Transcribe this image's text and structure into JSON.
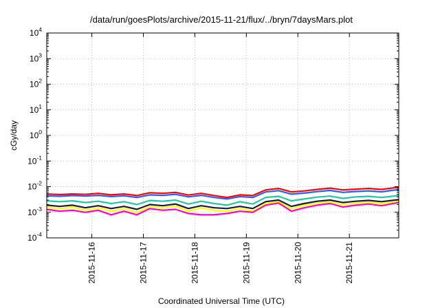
{
  "chart_data": {
    "type": "line",
    "title": "/data/run/goesPlots/archive/2015-11-21/flux/../bryn/7daysMars.plot",
    "xlabel": "Coordinated Universal Time (UTC)",
    "ylabel": "cGy/day",
    "yscale": "log",
    "ylim": [
      0.0001,
      10000
    ],
    "y_ticks": [
      {
        "base": "10",
        "exp": "-4",
        "value": 0.0001
      },
      {
        "base": "10",
        "exp": "-3",
        "value": 0.001
      },
      {
        "base": "10",
        "exp": "-2",
        "value": 0.01
      },
      {
        "base": "10",
        "exp": "-1",
        "value": 0.1
      },
      {
        "base": "10",
        "exp": "0",
        "value": 1
      },
      {
        "base": "10",
        "exp": "1",
        "value": 10
      },
      {
        "base": "10",
        "exp": "2",
        "value": 100
      },
      {
        "base": "10",
        "exp": "3",
        "value": 1000
      },
      {
        "base": "10",
        "exp": "4",
        "value": 10000
      }
    ],
    "xlim": [
      "2015-11-15T03:00",
      "2015-11-21T23:00"
    ],
    "x_ticks": [
      "2015-11-16",
      "2015-11-17",
      "2015-11-18",
      "2015-11-19",
      "2015-11-20",
      "2015-11-21"
    ],
    "grid": true,
    "series": [
      {
        "color": "#ff0000",
        "points": [
          [
            "2015-11-15T03:00",
            0.0052
          ],
          [
            "2015-11-15T09:00",
            0.0049
          ],
          [
            "2015-11-15T15:00",
            0.0052
          ],
          [
            "2015-11-15T21:00",
            0.005
          ],
          [
            "2015-11-16T03:00",
            0.0055
          ],
          [
            "2015-11-16T09:00",
            0.0048
          ],
          [
            "2015-11-16T15:00",
            0.0052
          ],
          [
            "2015-11-16T21:00",
            0.0045
          ],
          [
            "2015-11-17T03:00",
            0.0058
          ],
          [
            "2015-11-17T09:00",
            0.0055
          ],
          [
            "2015-11-17T15:00",
            0.006
          ],
          [
            "2015-11-17T21:00",
            0.0047
          ],
          [
            "2015-11-18T03:00",
            0.0055
          ],
          [
            "2015-11-18T09:00",
            0.0045
          ],
          [
            "2015-11-18T15:00",
            0.0038
          ],
          [
            "2015-11-18T21:00",
            0.0048
          ],
          [
            "2015-11-19T03:00",
            0.0045
          ],
          [
            "2015-11-19T09:00",
            0.0075
          ],
          [
            "2015-11-19T15:00",
            0.0085
          ],
          [
            "2015-11-19T21:00",
            0.0062
          ],
          [
            "2015-11-20T03:00",
            0.0068
          ],
          [
            "2015-11-20T09:00",
            0.0078
          ],
          [
            "2015-11-20T15:00",
            0.0088
          ],
          [
            "2015-11-20T21:00",
            0.0075
          ],
          [
            "2015-11-21T03:00",
            0.008
          ],
          [
            "2015-11-21T09:00",
            0.0085
          ],
          [
            "2015-11-21T15:00",
            0.0078
          ],
          [
            "2015-11-21T23:00",
            0.0095
          ]
        ]
      },
      {
        "color": "#1f5fff",
        "points": [
          [
            "2015-11-15T03:00",
            0.0044
          ],
          [
            "2015-11-15T09:00",
            0.0042
          ],
          [
            "2015-11-15T15:00",
            0.0045
          ],
          [
            "2015-11-15T21:00",
            0.0043
          ],
          [
            "2015-11-16T03:00",
            0.0046
          ],
          [
            "2015-11-16T09:00",
            0.0041
          ],
          [
            "2015-11-16T15:00",
            0.0044
          ],
          [
            "2015-11-16T21:00",
            0.0038
          ],
          [
            "2015-11-17T03:00",
            0.0048
          ],
          [
            "2015-11-17T09:00",
            0.0046
          ],
          [
            "2015-11-17T15:00",
            0.005
          ],
          [
            "2015-11-17T21:00",
            0.004
          ],
          [
            "2015-11-18T03:00",
            0.0046
          ],
          [
            "2015-11-18T09:00",
            0.0038
          ],
          [
            "2015-11-18T15:00",
            0.0033
          ],
          [
            "2015-11-18T21:00",
            0.0041
          ],
          [
            "2015-11-19T03:00",
            0.0038
          ],
          [
            "2015-11-19T09:00",
            0.0062
          ],
          [
            "2015-11-19T15:00",
            0.007
          ],
          [
            "2015-11-19T21:00",
            0.0051
          ],
          [
            "2015-11-20T03:00",
            0.0056
          ],
          [
            "2015-11-20T09:00",
            0.0064
          ],
          [
            "2015-11-20T15:00",
            0.0071
          ],
          [
            "2015-11-20T21:00",
            0.006
          ],
          [
            "2015-11-21T03:00",
            0.0065
          ],
          [
            "2015-11-21T09:00",
            0.0068
          ],
          [
            "2015-11-21T15:00",
            0.0063
          ],
          [
            "2015-11-21T23:00",
            0.0077
          ]
        ]
      },
      {
        "color": "#20c8a0",
        "points": [
          [
            "2015-11-15T03:00",
            0.0028
          ],
          [
            "2015-11-15T09:00",
            0.0026
          ],
          [
            "2015-11-15T15:00",
            0.0028
          ],
          [
            "2015-11-15T21:00",
            0.0024
          ],
          [
            "2015-11-16T03:00",
            0.0027
          ],
          [
            "2015-11-16T09:00",
            0.0022
          ],
          [
            "2015-11-16T15:00",
            0.0026
          ],
          [
            "2015-11-16T21:00",
            0.002
          ],
          [
            "2015-11-17T03:00",
            0.0029
          ],
          [
            "2015-11-17T09:00",
            0.0027
          ],
          [
            "2015-11-17T15:00",
            0.003
          ],
          [
            "2015-11-17T21:00",
            0.0021
          ],
          [
            "2015-11-18T03:00",
            0.0027
          ],
          [
            "2015-11-18T09:00",
            0.0022
          ],
          [
            "2015-11-18T15:00",
            0.0019
          ],
          [
            "2015-11-18T21:00",
            0.0026
          ],
          [
            "2015-11-19T03:00",
            0.0021
          ],
          [
            "2015-11-19T09:00",
            0.0038
          ],
          [
            "2015-11-19T15:00",
            0.0042
          ],
          [
            "2015-11-19T21:00",
            0.0028
          ],
          [
            "2015-11-20T03:00",
            0.0033
          ],
          [
            "2015-11-20T09:00",
            0.0039
          ],
          [
            "2015-11-20T15:00",
            0.0043
          ],
          [
            "2015-11-20T21:00",
            0.0035
          ],
          [
            "2015-11-21T03:00",
            0.004
          ],
          [
            "2015-11-21T09:00",
            0.0042
          ],
          [
            "2015-11-21T15:00",
            0.0038
          ],
          [
            "2015-11-21T23:00",
            0.0045
          ]
        ]
      },
      {
        "color": "#ffff00",
        "points": [
          [
            "2015-11-15T03:00",
            0.0016
          ],
          [
            "2015-11-15T09:00",
            0.0014
          ],
          [
            "2015-11-15T15:00",
            0.0016
          ],
          [
            "2015-11-15T21:00",
            0.0012
          ],
          [
            "2015-11-16T03:00",
            0.0015
          ],
          [
            "2015-11-16T09:00",
            0.0011
          ],
          [
            "2015-11-16T15:00",
            0.0014
          ],
          [
            "2015-11-16T21:00",
            0.001
          ],
          [
            "2015-11-17T03:00",
            0.0017
          ],
          [
            "2015-11-17T09:00",
            0.0015
          ],
          [
            "2015-11-17T15:00",
            0.0018
          ],
          [
            "2015-11-17T21:00",
            0.0011
          ],
          [
            "2015-11-18T03:00",
            0.0015
          ],
          [
            "2015-11-18T09:00",
            0.0012
          ],
          [
            "2015-11-18T15:00",
            0.0011
          ],
          [
            "2015-11-18T21:00",
            0.0014
          ],
          [
            "2015-11-19T03:00",
            0.0011
          ],
          [
            "2015-11-19T09:00",
            0.0022
          ],
          [
            "2015-11-19T15:00",
            0.0026
          ],
          [
            "2015-11-19T21:00",
            0.0014
          ],
          [
            "2015-11-20T03:00",
            0.0019
          ],
          [
            "2015-11-20T09:00",
            0.0023
          ],
          [
            "2015-11-20T15:00",
            0.0026
          ],
          [
            "2015-11-20T21:00",
            0.002
          ],
          [
            "2015-11-21T03:00",
            0.0023
          ],
          [
            "2015-11-21T09:00",
            0.0025
          ],
          [
            "2015-11-21T15:00",
            0.0022
          ],
          [
            "2015-11-21T23:00",
            0.0027
          ]
        ]
      },
      {
        "color": "#1a1a3a",
        "points": [
          [
            "2015-11-15T03:00",
            0.0019
          ],
          [
            "2015-11-15T09:00",
            0.0017
          ],
          [
            "2015-11-15T15:00",
            0.0019
          ],
          [
            "2015-11-15T21:00",
            0.0015
          ],
          [
            "2015-11-16T03:00",
            0.0018
          ],
          [
            "2015-11-16T09:00",
            0.0014
          ],
          [
            "2015-11-16T15:00",
            0.0017
          ],
          [
            "2015-11-16T21:00",
            0.0013
          ],
          [
            "2015-11-17T03:00",
            0.002
          ],
          [
            "2015-11-17T09:00",
            0.0018
          ],
          [
            "2015-11-17T15:00",
            0.0021
          ],
          [
            "2015-11-17T21:00",
            0.0014
          ],
          [
            "2015-11-18T03:00",
            0.0018
          ],
          [
            "2015-11-18T09:00",
            0.0015
          ],
          [
            "2015-11-18T15:00",
            0.0014
          ],
          [
            "2015-11-18T21:00",
            0.0017
          ],
          [
            "2015-11-19T03:00",
            0.0014
          ],
          [
            "2015-11-19T09:00",
            0.0026
          ],
          [
            "2015-11-19T15:00",
            0.003
          ],
          [
            "2015-11-19T21:00",
            0.0017
          ],
          [
            "2015-11-20T03:00",
            0.0022
          ],
          [
            "2015-11-20T09:00",
            0.0027
          ],
          [
            "2015-11-20T15:00",
            0.003
          ],
          [
            "2015-11-20T21:00",
            0.0024
          ],
          [
            "2015-11-21T03:00",
            0.0027
          ],
          [
            "2015-11-21T09:00",
            0.0029
          ],
          [
            "2015-11-21T15:00",
            0.0026
          ],
          [
            "2015-11-21T23:00",
            0.0031
          ]
        ]
      },
      {
        "color": "#ff00cc",
        "points": [
          [
            "2015-11-15T03:00",
            0.0013
          ],
          [
            "2015-11-15T09:00",
            0.0011
          ],
          [
            "2015-11-15T15:00",
            0.0012
          ],
          [
            "2015-11-15T21:00",
            0.001
          ],
          [
            "2015-11-16T03:00",
            0.0012
          ],
          [
            "2015-11-16T09:00",
            0.0008
          ],
          [
            "2015-11-16T15:00",
            0.0011
          ],
          [
            "2015-11-16T21:00",
            0.0008
          ],
          [
            "2015-11-17T03:00",
            0.0014
          ],
          [
            "2015-11-17T09:00",
            0.0012
          ],
          [
            "2015-11-17T15:00",
            0.0013
          ],
          [
            "2015-11-17T21:00",
            0.0009
          ],
          [
            "2015-11-18T03:00",
            0.0008
          ],
          [
            "2015-11-18T09:00",
            0.0008
          ],
          [
            "2015-11-18T15:00",
            0.0009
          ],
          [
            "2015-11-18T21:00",
            0.0011
          ],
          [
            "2015-11-19T03:00",
            0.001
          ],
          [
            "2015-11-19T09:00",
            0.0019
          ],
          [
            "2015-11-19T15:00",
            0.0023
          ],
          [
            "2015-11-19T21:00",
            0.0011
          ],
          [
            "2015-11-20T03:00",
            0.0015
          ],
          [
            "2015-11-20T09:00",
            0.0019
          ],
          [
            "2015-11-20T15:00",
            0.0022
          ],
          [
            "2015-11-20T21:00",
            0.0016
          ],
          [
            "2015-11-21T03:00",
            0.0019
          ],
          [
            "2015-11-21T09:00",
            0.0021
          ],
          [
            "2015-11-21T15:00",
            0.0018
          ],
          [
            "2015-11-21T23:00",
            0.0024
          ]
        ]
      }
    ]
  }
}
